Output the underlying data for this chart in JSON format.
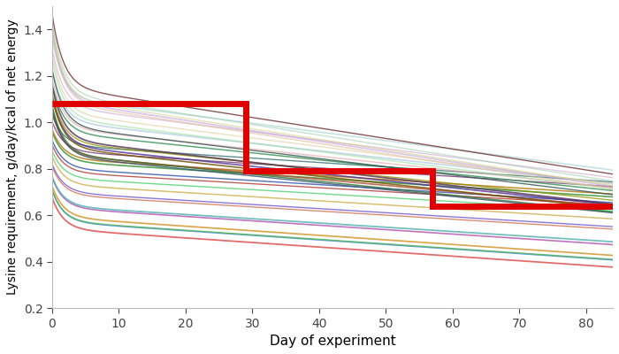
{
  "title": "",
  "xlabel": "Day of experiment",
  "ylabel": "Lysine requirement, g/day/kcal of net energy",
  "xlim": [
    0,
    84
  ],
  "ylim": [
    0.2,
    1.5
  ],
  "yticks": [
    0.2,
    0.4,
    0.6,
    0.8,
    1.0,
    1.2,
    1.4
  ],
  "xticks": [
    0,
    10,
    20,
    30,
    40,
    50,
    60,
    70,
    80
  ],
  "red_line": {
    "x": [
      0,
      29,
      29,
      57,
      57,
      84
    ],
    "y": [
      1.08,
      1.08,
      0.79,
      0.79,
      0.64,
      0.64
    ],
    "color": "#e00000",
    "linewidth": 5.0
  },
  "pig_lines": {
    "n_pigs": 36,
    "seed": 42,
    "colors": [
      "#e05050",
      "#4090d0",
      "#50b050",
      "#d09020",
      "#b050b0",
      "#50b0b0",
      "#d07050",
      "#7050d0",
      "#d0b050",
      "#50d070",
      "#b03030",
      "#3050b0",
      "#309030",
      "#b07000",
      "#703070",
      "#307070",
      "#b05030",
      "#503090",
      "#909000",
      "#309050",
      "#e0a0a0",
      "#a0c0e0",
      "#a0e0a0",
      "#e0d0a0",
      "#d0a0d0",
      "#a0d0d0",
      "#e0c0a0",
      "#c0a0e0",
      "#d0d080",
      "#a0d0b0",
      "#703030",
      "#305070",
      "#307030",
      "#705000",
      "#503050",
      "#305050",
      "#c08080",
      "#8080c0",
      "#80c080",
      "#c0c080"
    ],
    "start_values": [
      0.68,
      0.7,
      0.72,
      0.74,
      0.76,
      0.78,
      0.8,
      0.83,
      0.86,
      0.88,
      0.9,
      0.93,
      0.96,
      0.98,
      1.0,
      1.03,
      1.06,
      1.1,
      1.13,
      1.16,
      1.2,
      1.24,
      1.28,
      1.3,
      1.32,
      1.35,
      1.38,
      1.4,
      1.43,
      1.45,
      1.47,
      1.05,
      1.08,
      1.12,
      1.17,
      1.22
    ],
    "end_values": [
      0.38,
      0.4,
      0.42,
      0.44,
      0.47,
      0.5,
      0.53,
      0.56,
      0.59,
      0.62,
      0.64,
      0.66,
      0.68,
      0.7,
      0.72,
      0.74,
      0.65,
      0.63,
      0.67,
      0.7,
      0.73,
      0.75,
      0.72,
      0.74,
      0.76,
      0.78,
      0.7,
      0.72,
      0.74,
      0.76,
      0.78,
      0.6,
      0.62,
      0.64,
      0.66,
      0.68
    ],
    "alphas": [
      0.85,
      0.8,
      0.8,
      0.8,
      0.8,
      0.8,
      0.8,
      0.8,
      0.8,
      0.8,
      0.8,
      0.8,
      0.8,
      0.8,
      0.8,
      0.8,
      0.8,
      0.8,
      0.8,
      0.8,
      0.6,
      0.6,
      0.6,
      0.6,
      0.6,
      0.6,
      0.6,
      0.6,
      0.6,
      0.6,
      0.8,
      0.8,
      0.8,
      0.8,
      0.8,
      0.8
    ]
  },
  "background_color": "#ffffff"
}
